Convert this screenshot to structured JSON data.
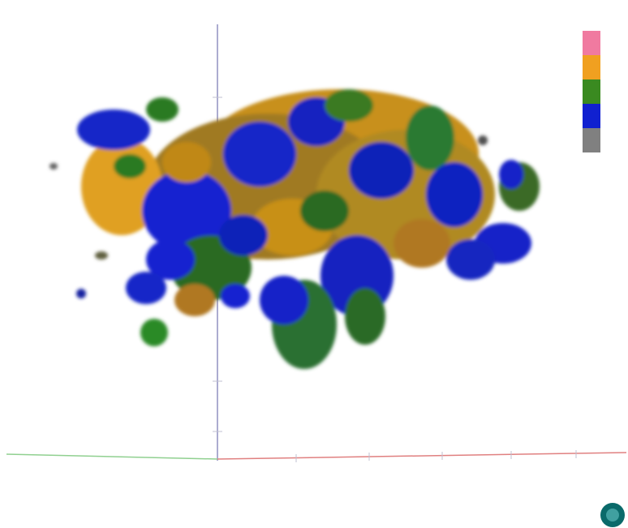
{
  "legend": {
    "colors": [
      "#f07aa0",
      "#f0a020",
      "#3a8a20",
      "#1020d0",
      "#808080"
    ]
  }
}
